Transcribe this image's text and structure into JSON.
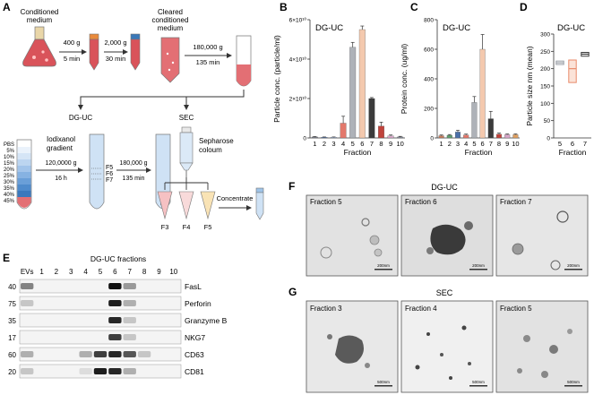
{
  "panel_labels": {
    "a": "A",
    "b": "B",
    "c": "C",
    "d": "D",
    "e": "E",
    "f": "F",
    "g": "G"
  },
  "workflow": {
    "conditioned_medium": [
      "Conditioned",
      "medium"
    ],
    "spin1": [
      "400 g",
      "5 min"
    ],
    "spin2": [
      "2,000 g",
      "30 min"
    ],
    "cleared": [
      "Cleared",
      "conditioned",
      "medium"
    ],
    "spin3": [
      "180,000 g",
      "135 min"
    ],
    "branch_dguc": "DG-UC",
    "branch_sec": "SEC",
    "iodixanol": [
      "Iodixanol",
      "gradient"
    ],
    "gradient_steps": [
      "PBS",
      "5%",
      "10%",
      "15%",
      "20%",
      "25%",
      "30%",
      "35%",
      "40%",
      "45%"
    ],
    "spin4": [
      "120,0000 g",
      "16 h"
    ],
    "spin5": [
      "180,000 g",
      "135 min"
    ],
    "fraction_labels": [
      "F5",
      "F6",
      "F7"
    ],
    "sepharose": [
      "Sepharose",
      "coloum"
    ],
    "sec_fractions": [
      "F3",
      "F4",
      "F5"
    ],
    "concentrate": "Concentrate"
  },
  "chart_data": [
    {
      "type": "bar",
      "panel": "B",
      "title": "DG-UC",
      "xlabel": "Fraction",
      "ylabel": "Particle conc. (particle/ml)",
      "categories": [
        "1",
        "2",
        "3",
        "4",
        "5",
        "6",
        "7",
        "8",
        "9",
        "10"
      ],
      "values": [
        500000000.0,
        300000000.0,
        300000000.0,
        7500000000.0,
        46000000000.0,
        55000000000.0,
        20000000000.0,
        6000000000.0,
        1000000000.0,
        500000000.0
      ],
      "errors": [
        200000000.0,
        200000000.0,
        200000000.0,
        3500000000.0,
        2500000000.0,
        1800000000.0,
        500000000.0,
        2000000000.0,
        500000000.0,
        300000000.0
      ],
      "ylim": [
        0,
        60000000000.0
      ],
      "yticks": [
        0,
        20000000000.0,
        40000000000.0,
        60000000000.0
      ],
      "ytick_labels": [
        "0",
        "2×10¹⁰",
        "4×10¹⁰",
        "6×10¹⁰"
      ],
      "colors": [
        "#7a7f8c",
        "#4b6fa8",
        "#9fb3d6",
        "#e3786b",
        "#aeb2b8",
        "#f4c9ae",
        "#3b3b3b",
        "#c0433c",
        "#d8a7c9",
        "#8a8fa0"
      ]
    },
    {
      "type": "bar",
      "panel": "C",
      "title": "DG-UC",
      "xlabel": "Fraction",
      "ylabel": "Protein conc. (ug/ml)",
      "categories": [
        "1",
        "2",
        "3",
        "4",
        "5",
        "6",
        "7",
        "8",
        "9",
        "10"
      ],
      "values": [
        15,
        18,
        40,
        20,
        240,
        600,
        130,
        25,
        22,
        22
      ],
      "errors": [
        5,
        5,
        12,
        6,
        40,
        100,
        50,
        8,
        5,
        5
      ],
      "ylim": [
        0,
        800
      ],
      "yticks": [
        0,
        200,
        400,
        600,
        800
      ],
      "ytick_labels": [
        "0",
        "200",
        "400",
        "600",
        "800"
      ],
      "colors": [
        "#c47a5a",
        "#5f9e6e",
        "#4b6fa8",
        "#e3786b",
        "#aeb2b8",
        "#f4c9ae",
        "#3b3b3b",
        "#c0433c",
        "#d8a7c9",
        "#e0a060"
      ]
    },
    {
      "type": "box",
      "panel": "D",
      "title": "DG-UC",
      "xlabel": "Fraction",
      "ylabel": "Particle size nm (mean)",
      "categories": [
        "5",
        "6",
        "7"
      ],
      "boxes": [
        {
          "low": 212,
          "high": 222,
          "median": 217
        },
        {
          "low": 160,
          "high": 225,
          "median": 200
        },
        {
          "low": 236,
          "high": 247,
          "median": 242
        }
      ],
      "colors": [
        "#9a9ea6",
        "#e88a6a",
        "#3b3b3b"
      ],
      "ylim": [
        0,
        300
      ],
      "yticks": [
        0,
        50,
        100,
        150,
        200,
        250,
        300
      ],
      "ytick_labels": [
        "0",
        "50",
        "100",
        "150",
        "200",
        "250",
        "300"
      ]
    }
  ],
  "blot": {
    "title": "DG-UC fractions",
    "lane_labels": [
      "EVs",
      "1",
      "2",
      "3",
      "4",
      "5",
      "6",
      "7",
      "8",
      "9",
      "10"
    ],
    "markers": [
      "40",
      "75",
      "35",
      "17",
      "60",
      "20"
    ],
    "proteins": [
      "FasL",
      "Perforin",
      "Granzyme B",
      "NKG7",
      "CD63",
      "CD81"
    ]
  },
  "em_dguc": {
    "title": "DG-UC",
    "panels": [
      "Fraction 5",
      "Fraction 6",
      "Fraction 7"
    ],
    "scalebar": "200nm"
  },
  "em_sec": {
    "title": "SEC",
    "panels": [
      "Fraction 3",
      "Fraction 4",
      "Fraction 5"
    ],
    "scalebar": "500nm"
  }
}
